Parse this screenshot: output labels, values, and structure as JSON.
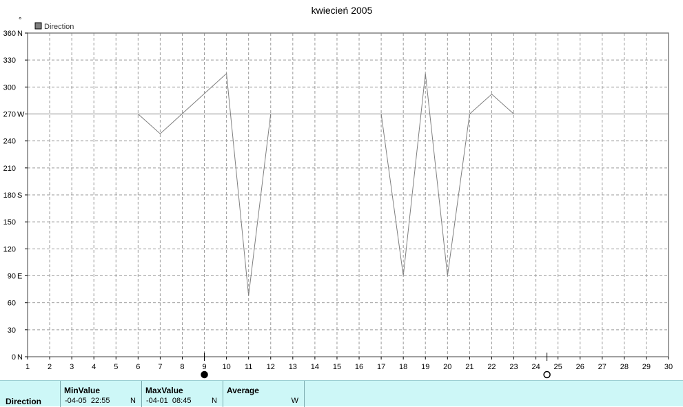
{
  "chart_data": {
    "type": "line",
    "title": "kwiecień 2005",
    "ylabel": "°",
    "xlim": [
      1,
      30
    ],
    "ylim": [
      0,
      360
    ],
    "grid": true,
    "legend_position": "top-left",
    "x_ticks": [
      "1",
      "2",
      "3",
      "4",
      "5",
      "6",
      "7",
      "8",
      "9",
      "10",
      "11",
      "12",
      "13",
      "14",
      "15",
      "16",
      "17",
      "18",
      "19",
      "20",
      "21",
      "22",
      "23",
      "24",
      "25",
      "26",
      "27",
      "28",
      "29",
      "30"
    ],
    "y_ticks": [
      {
        "value": 0,
        "label": "0",
        "dir": "N"
      },
      {
        "value": 30,
        "label": "30",
        "dir": ""
      },
      {
        "value": 60,
        "label": "60",
        "dir": ""
      },
      {
        "value": 90,
        "label": "90",
        "dir": "E"
      },
      {
        "value": 120,
        "label": "120",
        "dir": ""
      },
      {
        "value": 150,
        "label": "150",
        "dir": ""
      },
      {
        "value": 180,
        "label": "180",
        "dir": "S"
      },
      {
        "value": 210,
        "label": "210",
        "dir": ""
      },
      {
        "value": 240,
        "label": "240",
        "dir": ""
      },
      {
        "value": 270,
        "label": "270",
        "dir": "W"
      },
      {
        "value": 300,
        "label": "300",
        "dir": ""
      },
      {
        "value": 330,
        "label": "330",
        "dir": ""
      },
      {
        "value": 360,
        "label": "360",
        "dir": "N"
      }
    ],
    "reference_line": 270,
    "series": [
      {
        "name": "Direction",
        "color": "#7f7f7f",
        "x": [
          6,
          7,
          10,
          11,
          12,
          17,
          18,
          19,
          20,
          21,
          22,
          23
        ],
        "y": [
          270,
          248,
          315,
          68,
          270,
          270,
          90,
          315,
          90,
          270,
          292,
          270
        ]
      }
    ],
    "markers": [
      {
        "x": 9,
        "style": "filled"
      },
      {
        "x": 24.5,
        "style": "hollow"
      }
    ]
  },
  "stats": {
    "row_label": "Direction",
    "min": {
      "header": "MinValue",
      "value": "-04-05  22:55",
      "dir": "N"
    },
    "max": {
      "header": "MaxValue",
      "value": "-04-01  08:45",
      "dir": "N"
    },
    "avg": {
      "header": "Average",
      "value": "",
      "dir": "W"
    }
  }
}
